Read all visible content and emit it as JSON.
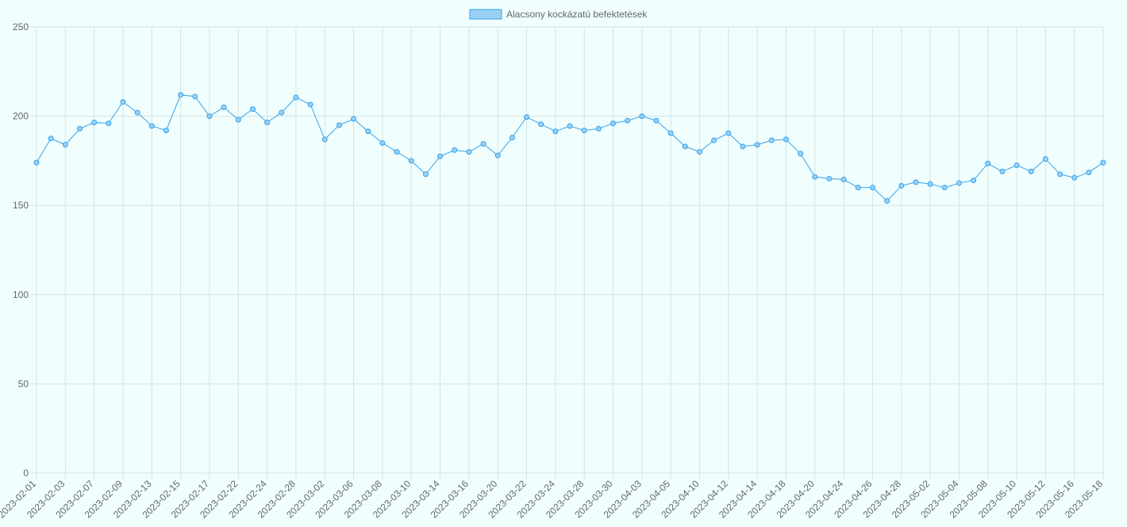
{
  "chart_data": {
    "type": "line",
    "legend": {
      "label": "Alacsony kockázatú befektetések",
      "position": "top"
    },
    "y_axis": {
      "min": 0,
      "max": 250,
      "step": 50,
      "ticks": [
        "0",
        "50",
        "100",
        "150",
        "200",
        "250"
      ]
    },
    "x_tick_labels": [
      "2023-02-01",
      "2023-02-03",
      "2023-02-07",
      "2023-02-09",
      "2023-02-13",
      "2023-02-15",
      "2023-02-17",
      "2023-02-22",
      "2023-02-24",
      "2023-02-28",
      "2023-03-02",
      "2023-03-06",
      "2023-03-08",
      "2023-03-10",
      "2023-03-14",
      "2023-03-16",
      "2023-03-20",
      "2023-03-22",
      "2023-03-24",
      "2023-03-28",
      "2023-03-30",
      "2023-04-03",
      "2023-04-05",
      "2023-04-10",
      "2023-04-12",
      "2023-04-14",
      "2023-04-18",
      "2023-04-20",
      "2023-04-24",
      "2023-04-26",
      "2023-04-28",
      "2023-05-02",
      "2023-05-04",
      "2023-05-08",
      "2023-05-10",
      "2023-05-12",
      "2023-05-16",
      "2023-05-18"
    ],
    "series": [
      {
        "name": "Alacsony kockázatú befektetések",
        "color": "#36a2eb",
        "fill": "#9ad0f5",
        "values": [
          174,
          187.5,
          184,
          193,
          196.5,
          196,
          208,
          202,
          194.5,
          192,
          212,
          211,
          200,
          205,
          198,
          204,
          196.5,
          202,
          210.5,
          206.5,
          187,
          195,
          198.5,
          191.5,
          185,
          180,
          175,
          167.5,
          177.5,
          181,
          180,
          184.5,
          178,
          188,
          199.5,
          195.5,
          191.5,
          194.5,
          192,
          193,
          196,
          197.5,
          200,
          197.5,
          190.5,
          183,
          180,
          186.5,
          190.5,
          183,
          184,
          186.5,
          187,
          179,
          166,
          165,
          164.5,
          160,
          160,
          152.5,
          161,
          163,
          162,
          160,
          162.5,
          164,
          173.5,
          169,
          172.5,
          169,
          176,
          167.5,
          165.5,
          168.5,
          174
        ]
      }
    ],
    "grid": true
  }
}
